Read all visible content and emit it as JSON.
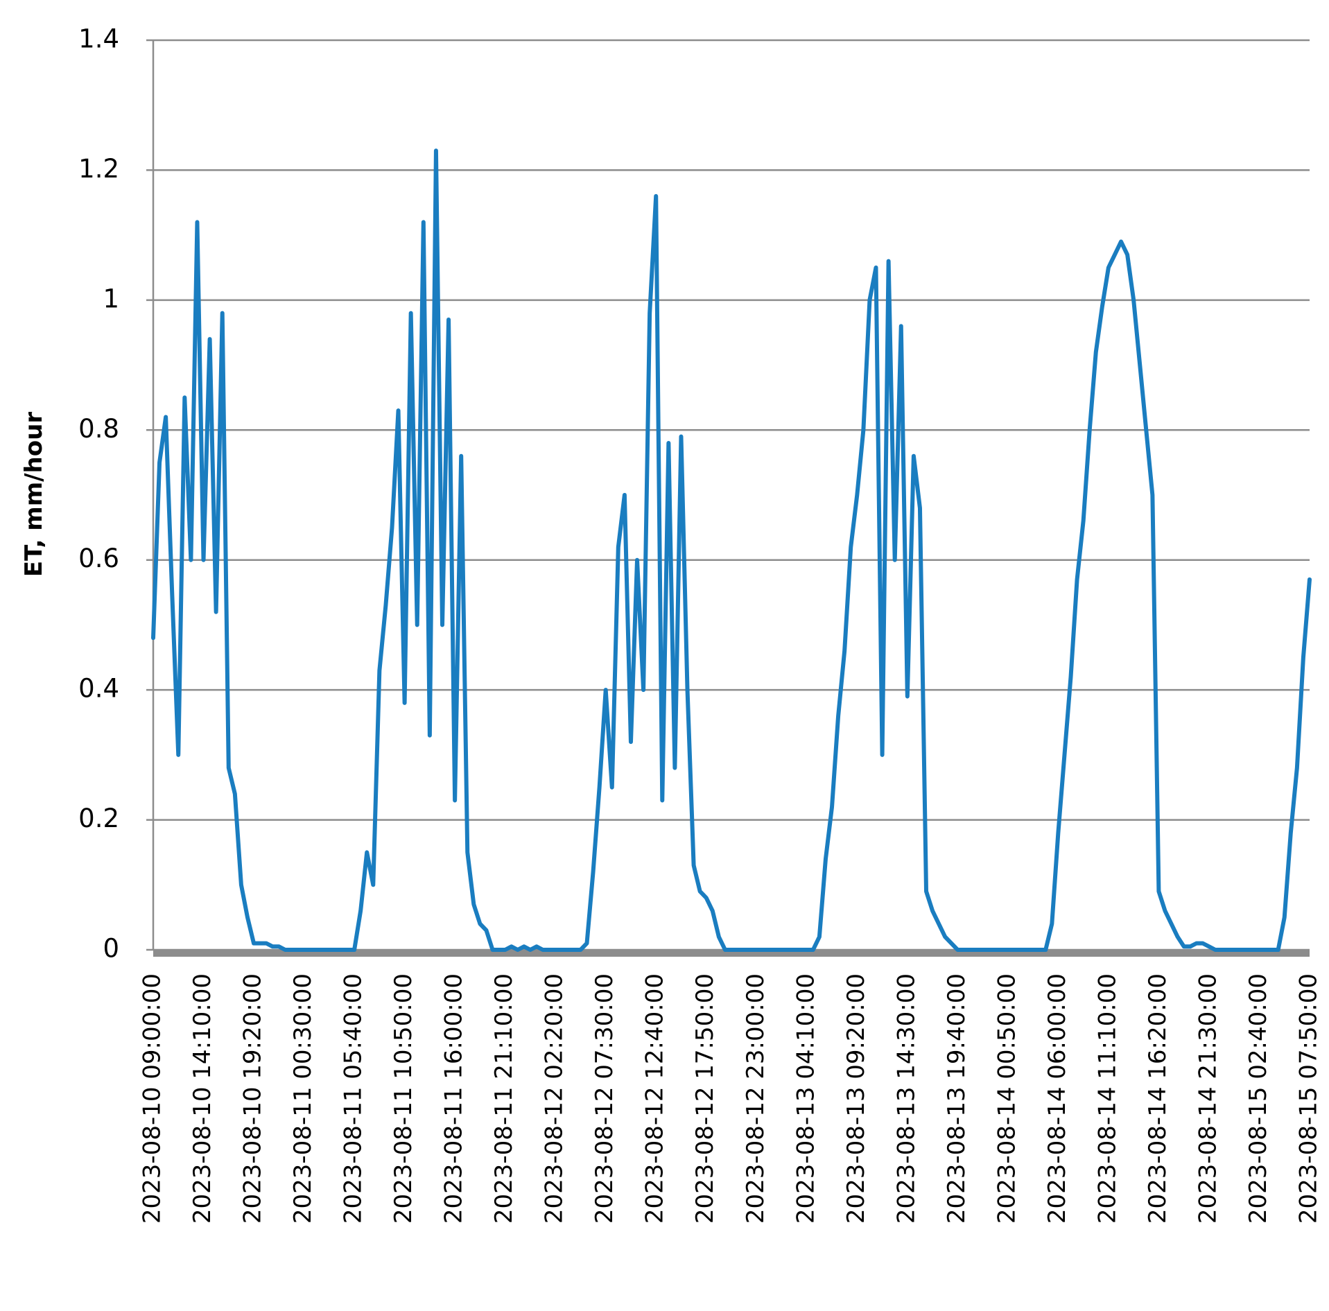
{
  "chart_data": {
    "type": "line",
    "y_label": "ET, mm/hour",
    "categories": [
      "2023-08-10 09:00:00",
      null,
      null,
      null,
      null,
      null,
      null,
      null,
      "2023-08-10 14:10:00",
      null,
      null,
      null,
      null,
      null,
      null,
      null,
      "2023-08-10 19:20:00",
      null,
      null,
      null,
      null,
      null,
      null,
      null,
      "2023-08-11 00:30:00",
      null,
      null,
      null,
      null,
      null,
      null,
      null,
      "2023-08-11 05:40:00",
      null,
      null,
      null,
      null,
      null,
      null,
      null,
      "2023-08-11 10:50:00",
      null,
      null,
      null,
      null,
      null,
      null,
      null,
      "2023-08-11 16:00:00",
      null,
      null,
      null,
      null,
      null,
      null,
      null,
      "2023-08-11 21:10:00",
      null,
      null,
      null,
      null,
      null,
      null,
      null,
      "2023-08-12 02:20:00",
      null,
      null,
      null,
      null,
      null,
      null,
      null,
      "2023-08-12 07:30:00",
      null,
      null,
      null,
      null,
      null,
      null,
      null,
      "2023-08-12 12:40:00",
      null,
      null,
      null,
      null,
      null,
      null,
      null,
      "2023-08-12 17:50:00",
      null,
      null,
      null,
      null,
      null,
      null,
      null,
      "2023-08-12 23:00:00",
      null,
      null,
      null,
      null,
      null,
      null,
      null,
      "2023-08-13 04:10:00",
      null,
      null,
      null,
      null,
      null,
      null,
      null,
      "2023-08-13 09:20:00",
      null,
      null,
      null,
      null,
      null,
      null,
      null,
      "2023-08-13 14:30:00",
      null,
      null,
      null,
      null,
      null,
      null,
      null,
      "2023-08-13 19:40:00",
      null,
      null,
      null,
      null,
      null,
      null,
      null,
      "2023-08-14 00:50:00",
      null,
      null,
      null,
      null,
      null,
      null,
      null,
      "2023-08-14 06:00:00",
      null,
      null,
      null,
      null,
      null,
      null,
      null,
      "2023-08-14 11:10:00",
      null,
      null,
      null,
      null,
      null,
      null,
      null,
      "2023-08-14 16:20:00",
      null,
      null,
      null,
      null,
      null,
      null,
      null,
      "2023-08-14 21:30:00",
      null,
      null,
      null,
      null,
      null,
      null,
      null,
      "2023-08-15 02:40:00",
      null,
      null,
      null,
      null,
      null,
      null,
      null,
      "2023-08-15 07:50:00"
    ],
    "series": [
      {
        "color": "#1a7dc0",
        "values": [
          0.48,
          0.75,
          0.82,
          0.55,
          0.3,
          0.85,
          0.6,
          1.12,
          0.6,
          0.94,
          0.52,
          0.98,
          0.28,
          0.24,
          0.1,
          0.05,
          0.01,
          0.01,
          0.01,
          0.005,
          0.005,
          0,
          0,
          0,
          0,
          0,
          0,
          0,
          0,
          0,
          0,
          0,
          0,
          0.06,
          0.15,
          0.1,
          0.43,
          0.53,
          0.65,
          0.83,
          0.38,
          0.98,
          0.5,
          1.12,
          0.33,
          1.23,
          0.5,
          0.97,
          0.23,
          0.76,
          0.15,
          0.07,
          0.04,
          0.03,
          0,
          0,
          0,
          0.005,
          0,
          0.005,
          0,
          0.005,
          0,
          0,
          0,
          0,
          0,
          0,
          0,
          0.01,
          0.12,
          0.25,
          0.4,
          0.25,
          0.62,
          0.7,
          0.32,
          0.6,
          0.4,
          0.98,
          1.16,
          0.23,
          0.78,
          0.28,
          0.79,
          0.4,
          0.13,
          0.09,
          0.08,
          0.06,
          0.02,
          0,
          0,
          0,
          0,
          0,
          0,
          0,
          0,
          0,
          0,
          0,
          0,
          0,
          0,
          0,
          0.02,
          0.14,
          0.22,
          0.36,
          0.46,
          0.62,
          0.7,
          0.8,
          1.0,
          1.05,
          0.3,
          1.06,
          0.6,
          0.96,
          0.39,
          0.76,
          0.68,
          0.09,
          0.06,
          0.04,
          0.02,
          0.01,
          0,
          0,
          0,
          0,
          0,
          0,
          0,
          0,
          0,
          0,
          0,
          0,
          0,
          0,
          0,
          0.04,
          0.18,
          0.3,
          0.42,
          0.57,
          0.66,
          0.8,
          0.92,
          0.99,
          1.05,
          1.07,
          1.09,
          1.07,
          1.0,
          0.9,
          0.8,
          0.7,
          0.09,
          0.06,
          0.04,
          0.02,
          0.005,
          0.005,
          0.01,
          0.01,
          0.005,
          0,
          0,
          0,
          0,
          0,
          0,
          0,
          0,
          0,
          0,
          0,
          0.05,
          0.18,
          0.28,
          0.45,
          0.57
        ]
      }
    ],
    "ylim": [
      0,
      1.4
    ],
    "yticks": [
      0,
      0.2,
      0.4,
      0.6,
      0.8,
      1,
      1.2,
      1.4
    ],
    "grid": true
  }
}
